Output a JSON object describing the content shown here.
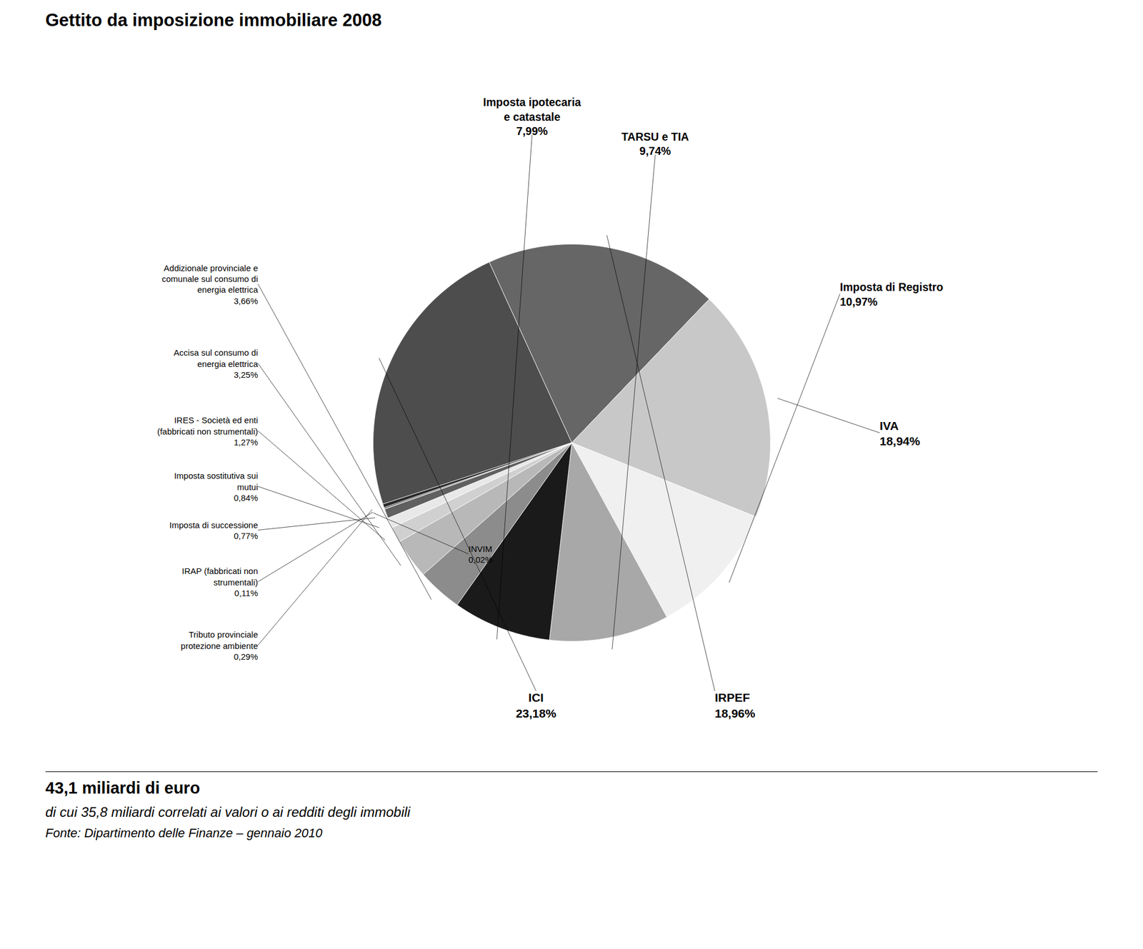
{
  "chart_data": {
    "type": "pie",
    "title": "Gettito da imposizione immobiliare 2008",
    "subtitle": "43,1 miliardi di euro",
    "annotations": [
      "di cui 35,8 miliardi correlati ai valori o ai redditi degli immobili",
      "Fonte: Dipartimento delle Finanze – gennaio 2010"
    ],
    "categories": [
      "ICI",
      "IRPEF",
      "IVA",
      "Imposta di Registro",
      "TARSU e TIA",
      "Imposta ipotecaria\ne catastale",
      "Addizionale provinciale e\ncomunale sul consumo di\nenergia elettrica",
      "Accisa sul consumo di\nenergia elettrica",
      "IRES - Società ed enti\n(fabbricati non strumentali)",
      "Imposta sostitutiva sui\nmutui",
      "Imposta di successione",
      "INVIM",
      "IRAP (fabbricati non\nstrumentali)",
      "Tributo provinciale\nprotezione ambiente"
    ],
    "values": [
      23.18,
      18.96,
      18.94,
      10.97,
      9.74,
      7.99,
      3.66,
      3.25,
      1.27,
      0.84,
      0.77,
      0.02,
      0.11,
      0.29
    ],
    "value_labels": [
      "23,18%",
      "18,96%",
      "18,94%",
      "10,97%",
      "9,74%",
      "7,99%",
      "3,66%",
      "3,25%",
      "1,27%",
      "0,84%",
      "0,77%",
      "0,02%",
      "0,11%",
      "0,29%"
    ],
    "colors": [
      "#4d4d4d",
      "#666666",
      "#c8c8c8",
      "#f0f0f0",
      "#a8a8a8",
      "#1a1a1a",
      "#8c8c8c",
      "#b8b8b8",
      "#d0d0d0",
      "#e8e8e8",
      "#606060",
      "#f5f5f5",
      "#484848",
      "#2a2a2a"
    ],
    "data_labels": true
  }
}
